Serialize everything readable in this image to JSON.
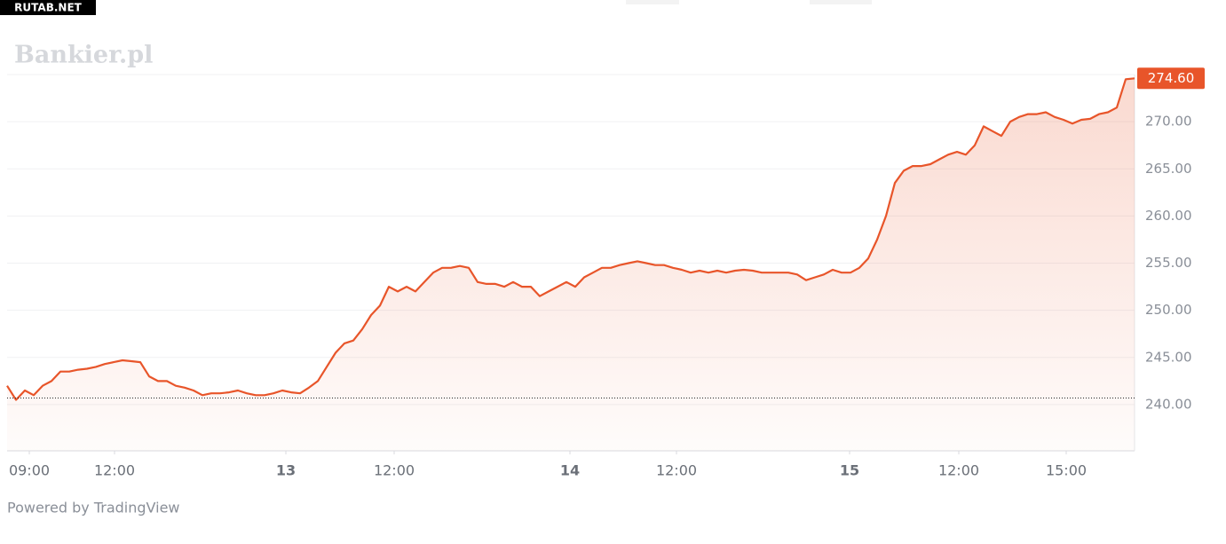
{
  "watermark_badge": "RUTAB.NET",
  "brand": "Bankier.pl",
  "footer": "Powered by TradingView",
  "chart_data": {
    "type": "line",
    "color": "#e8552a",
    "values": [
      242,
      240.5,
      241.5,
      241,
      242,
      242.5,
      243.5,
      243.5,
      243.7,
      243.8,
      244,
      244.3,
      244.5,
      244.7,
      244.6,
      244.5,
      243,
      242.5,
      242.5,
      242,
      241.8,
      241.5,
      241,
      241.2,
      241.2,
      241.3,
      241.5,
      241.2,
      241,
      241,
      241.2,
      241.5,
      241.3,
      241.2,
      241.8,
      242.5,
      244,
      245.5,
      246.5,
      246.8,
      248,
      249.5,
      250.5,
      252.5,
      252,
      252.5,
      252,
      253,
      254,
      254.5,
      254.5,
      254.7,
      254.5,
      253,
      252.8,
      252.8,
      252.5,
      253,
      252.5,
      252.5,
      251.5,
      252,
      252.5,
      253,
      252.5,
      253.5,
      254,
      254.5,
      254.5,
      254.8,
      255,
      255.2,
      255,
      254.8,
      254.8,
      254.5,
      254.3,
      254,
      254.2,
      254,
      254.2,
      254,
      254.2,
      254.3,
      254.2,
      254,
      254,
      254,
      254,
      253.8,
      253.2,
      253.5,
      253.8,
      254.3,
      254,
      254,
      254.5,
      255.5,
      257.5,
      260,
      263.5,
      264.8,
      265.3,
      265.3,
      265.5,
      266,
      266.5,
      266.8,
      266.5,
      267.5,
      269.5,
      269,
      268.5,
      270,
      270.5,
      270.8,
      270.8,
      271,
      270.5,
      270.2,
      269.8,
      270.2,
      270.3,
      270.8,
      271,
      271.5,
      274.5,
      274.6
    ],
    "xlim": [
      0,
      127
    ],
    "xticks": [
      {
        "value": 2.5,
        "label": "09:00"
      },
      {
        "value": 12.1,
        "label": "12:00"
      },
      {
        "value": 31.4,
        "label": "13"
      },
      {
        "value": 43.6,
        "label": "12:00"
      },
      {
        "value": 63.4,
        "label": "14"
      },
      {
        "value": 75.4,
        "label": "12:00"
      },
      {
        "value": 94.9,
        "label": "15"
      },
      {
        "value": 107.2,
        "label": "12:00"
      },
      {
        "value": 119.3,
        "label": "15:00"
      }
    ],
    "ylim": [
      235.1,
      275
    ],
    "yticks": [
      {
        "value": 240,
        "label": "240.00"
      },
      {
        "value": 245,
        "label": "245.00"
      },
      {
        "value": 250,
        "label": "250.00"
      },
      {
        "value": 255,
        "label": "255.00"
      },
      {
        "value": 260,
        "label": "260.00"
      },
      {
        "value": 265,
        "label": "265.00"
      },
      {
        "value": 270,
        "label": "270.00"
      }
    ],
    "reference_value": 240.7,
    "last_price": {
      "value": 274.6,
      "label": "274.60"
    },
    "grid": true
  }
}
